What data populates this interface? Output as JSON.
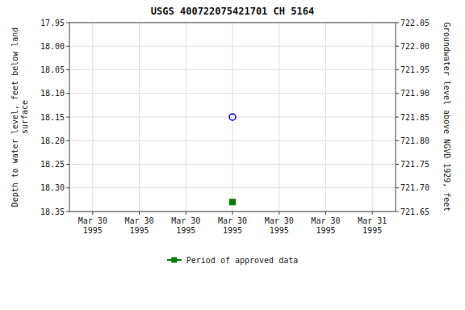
{
  "chart_data": {
    "type": "scatter",
    "title": "USGS 400722075421701 CH  5164",
    "ylabel": "Depth to water level, feet below land\nsurface",
    "y2label": "Groundwater level above NGVD 1929, feet",
    "categories": [
      "Mar 30\n1995",
      "Mar 30\n1995",
      "Mar 30\n1995",
      "Mar 30\n1995",
      "Mar 30\n1995",
      "Mar 30\n1995",
      "Mar 31\n1995"
    ],
    "series": [
      {
        "color": "#0000cd",
        "marker": "circle",
        "values": [
          null,
          null,
          null,
          18.15,
          null,
          null,
          null
        ]
      },
      {
        "name": "Period of approved data",
        "color": "#008000",
        "marker": "square",
        "line_style": "solid",
        "values": [
          null,
          null,
          null,
          18.33,
          null,
          null,
          null
        ]
      }
    ],
    "ylim": [
      18.35,
      17.95
    ],
    "yticks": [
      17.95,
      {
        "value": 18.0,
        "label": "18.00"
      },
      18.05,
      {
        "value": 18.1,
        "label": "18.10"
      },
      18.15,
      {
        "value": 18.2,
        "label": "18.20"
      },
      18.25,
      {
        "value": 18.3,
        "label": "18.30"
      },
      18.35
    ],
    "y2lim": [
      721.65,
      722.05
    ],
    "y2ticks": [
      722.05,
      {
        "value": 722.0,
        "label": "722.00"
      },
      721.95,
      {
        "value": 721.9,
        "label": "721.90"
      },
      721.85,
      {
        "value": 721.8,
        "label": "721.80"
      },
      721.75,
      {
        "value": 721.7,
        "label": "721.70"
      },
      721.65
    ],
    "grid": true,
    "legend": "bottom"
  }
}
